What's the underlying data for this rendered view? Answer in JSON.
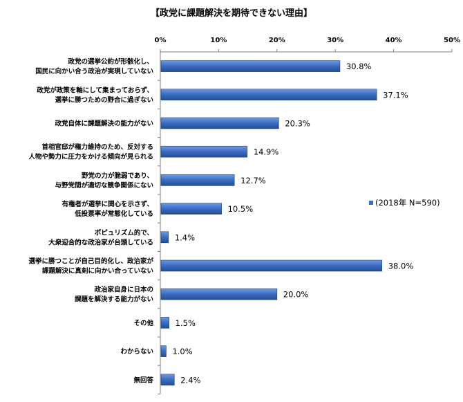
{
  "chart_data": {
    "type": "bar",
    "orientation": "horizontal",
    "title": "【政党に課題解決を期待できない理由】",
    "categories": [
      [
        "政党の選挙公約が形骸化し、",
        "国民に向かい合う政治が実現していない"
      ],
      [
        "政党が政策を軸にして集まっておらず、",
        "選挙に勝つための野合に過ぎない"
      ],
      [
        "政党自体に課題解決の能力がない"
      ],
      [
        "首相官邸が権力維持のため、反対する",
        "人物や勢力に圧力をかける傾向が見られる"
      ],
      [
        "野党の力が脆弱であり、",
        "与野党間が適切な競争関係にない"
      ],
      [
        "有権者が選挙に関心を示さず、",
        "低投票率が常態化している"
      ],
      [
        "ポピュリズム的で、",
        "大衆迎合的な政治家が台頭している"
      ],
      [
        "選挙に勝つことが自己目的化し、政治家が",
        "課題解決に真剣に向かい合っていない"
      ],
      [
        "政治家自身に日本の",
        "課題を解決する能力がない"
      ],
      [
        "その他"
      ],
      [
        "わからない"
      ],
      [
        "無回答"
      ]
    ],
    "series": [
      {
        "name": "(2018年 N=590)",
        "values": [
          30.8,
          37.1,
          20.3,
          14.9,
          12.7,
          10.5,
          1.4,
          38.0,
          20.0,
          1.5,
          1.0,
          2.4
        ]
      }
    ],
    "value_labels": [
      "30.8%",
      "37.1%",
      "20.3%",
      "14.9%",
      "12.7%",
      "10.5%",
      "1.4%",
      "38.0%",
      "20.0%",
      "1.5%",
      "1.0%",
      "2.4%"
    ],
    "xlim": [
      0,
      50
    ],
    "x_ticks": [
      "0%",
      "10%",
      "20%",
      "30%",
      "40%",
      "50%"
    ],
    "grid": false,
    "legend_position": "right",
    "bar_color": "#3A6CC0"
  }
}
